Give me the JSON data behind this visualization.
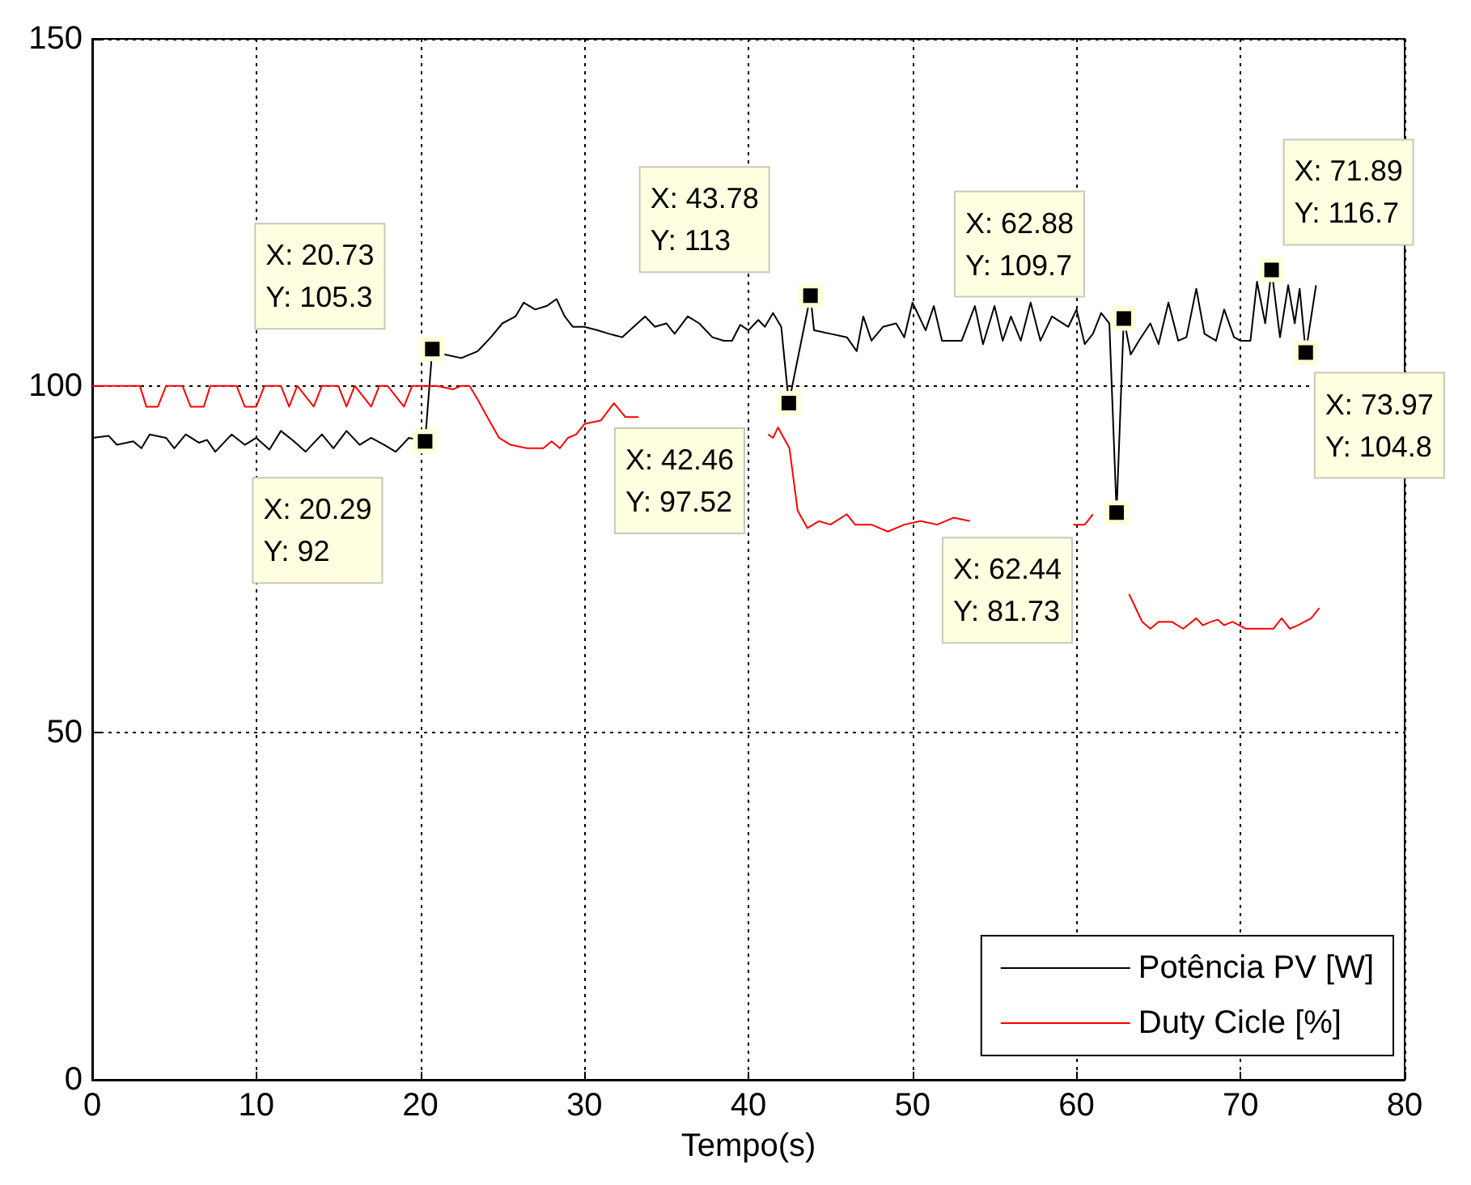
{
  "chart_data": {
    "type": "line",
    "xlabel": "Tempo(s)",
    "xlim": [
      0,
      80
    ],
    "xticks": [
      0,
      10,
      20,
      30,
      40,
      50,
      60,
      70,
      80
    ],
    "ylim": [
      0,
      150
    ],
    "yticks": [
      0,
      50,
      100,
      150
    ],
    "grid": true,
    "legend": "bottom right",
    "marker": "none",
    "line_style": "solid",
    "series": [
      {
        "name": "Potência PV [W]",
        "color": "#000000",
        "x": [
          0,
          1,
          1.5,
          2.5,
          3,
          3.5,
          4.5,
          5,
          5.7,
          6.5,
          7,
          7.5,
          8.5,
          9.3,
          10,
          10.8,
          11.5,
          12.3,
          13,
          14,
          14.7,
          15.5,
          16.3,
          17,
          17.8,
          18.5,
          19.3,
          20.29,
          20.73,
          21.5,
          22.5,
          23.5,
          24.3,
          25,
          25.8,
          26.3,
          27,
          27.7,
          28.3,
          28.8,
          29.3,
          30,
          30.8,
          31.5,
          32.3,
          33,
          33.7,
          34.3,
          35,
          35.5,
          36.3,
          37,
          37.8,
          38.5,
          39,
          39.5,
          40,
          40.6,
          41,
          41.5,
          42,
          42.46,
          43.78,
          44,
          45,
          46,
          46.6,
          47,
          47.5,
          48.2,
          49,
          49.5,
          50,
          50.8,
          51.3,
          51.8,
          52.3,
          53,
          53.8,
          54.3,
          55,
          55.5,
          56,
          56.6,
          57.2,
          57.8,
          58.5,
          59.5,
          60,
          60.5,
          61,
          61.5,
          62,
          62.44,
          62.88,
          63.3,
          63.8,
          64.5,
          65,
          65.6,
          66.2,
          66.7,
          67.3,
          67.8,
          68.5,
          69,
          69.6,
          70,
          70.6,
          71,
          71.5,
          71.89,
          72.4,
          72.9,
          73.3,
          73.6,
          73.97,
          74.6
        ],
        "values": [
          92.5,
          92.8,
          91.5,
          92,
          91,
          93,
          92.5,
          91,
          93,
          91.8,
          92.2,
          90.5,
          93,
          91.5,
          92.5,
          90.8,
          93.5,
          92,
          90.5,
          93,
          91,
          93.5,
          91.5,
          92.5,
          91.5,
          90.5,
          92.5,
          92,
          105.3,
          104.5,
          104,
          105,
          107,
          109,
          110,
          112,
          111,
          111.5,
          112.5,
          110,
          108.5,
          108.5,
          108,
          107.5,
          107,
          108.5,
          110,
          108.5,
          109,
          107.5,
          110,
          109,
          107,
          106.5,
          106.5,
          108.8,
          108,
          109.5,
          108.5,
          110.5,
          108.5,
          97.52,
          113,
          108,
          107.5,
          107,
          105,
          110,
          106.5,
          108.5,
          109,
          107,
          112,
          108,
          111.5,
          106.5,
          106.5,
          106.5,
          111.5,
          106,
          111.5,
          106.5,
          110,
          106.5,
          112,
          106.5,
          110,
          108.5,
          111,
          106,
          107.5,
          110.5,
          109,
          81.73,
          109.7,
          104.5,
          106.5,
          109,
          106,
          112,
          106.5,
          107,
          114,
          107.5,
          106.5,
          111,
          107,
          106.5,
          106.5,
          115,
          109,
          116.7,
          107,
          114.5,
          109,
          114,
          104.8,
          114.5
        ]
      },
      {
        "name": "Duty Cicle [%]",
        "color": "#ff0000",
        "x": [
          0,
          2.9,
          3.3,
          4,
          4.5,
          5.5,
          6,
          6.8,
          7.2,
          8.8,
          9.3,
          10,
          10.5,
          11.5,
          12,
          12.5,
          13.5,
          14,
          15,
          15.5,
          16,
          17,
          17.5,
          18,
          19,
          19.5,
          21,
          22,
          22.5,
          23,
          23.5,
          24.2,
          24.8,
          25.5,
          26.5,
          27.5,
          28,
          28.5,
          29,
          29.5,
          30,
          31,
          31.8,
          32.5,
          33.3,
          37,
          41.2,
          41.5,
          41.8,
          42.5,
          43,
          43.6,
          44.3,
          45,
          46,
          46.5,
          47.5,
          48.5,
          49.5,
          50.5,
          51.5,
          52.5,
          53.5,
          57,
          59.8,
          60.5,
          61,
          62.6,
          63.2,
          63.6,
          64,
          64.5,
          65,
          65.8,
          66.5,
          67.3,
          67.7,
          68.2,
          68.6,
          69,
          69.5,
          70.3,
          72,
          72.5,
          73,
          73.5,
          74.3,
          74.8
        ],
        "values": [
          100,
          100,
          97,
          97,
          100,
          100,
          97,
          97,
          100,
          100,
          97,
          97,
          100,
          100,
          97,
          100,
          97,
          100,
          100,
          97,
          100,
          97,
          100,
          100,
          97,
          100,
          100,
          99.5,
          100,
          100,
          98,
          95,
          92.5,
          91.5,
          91,
          91,
          92,
          91,
          92.5,
          93,
          94.5,
          95,
          97.5,
          95.5,
          95.5,
          null,
          93,
          92.5,
          94,
          91,
          82,
          79.5,
          80.5,
          80,
          81.5,
          80,
          80,
          79,
          80,
          80.5,
          80,
          81,
          80.5,
          null,
          80,
          80,
          81.5,
          null,
          70,
          68,
          66,
          65,
          66,
          66,
          65,
          66.5,
          65.5,
          66,
          66.3,
          65.5,
          66,
          65,
          65,
          66.5,
          65,
          65.5,
          66.5,
          68
        ]
      }
    ],
    "annotations": [
      {
        "text": "X: 20.29\nY: 92",
        "x": 20.29,
        "y": 92
      },
      {
        "text": "X: 20.73\nY: 105.3",
        "x": 20.73,
        "y": 105.3
      },
      {
        "text": "X: 42.46\nY: 97.52",
        "x": 42.46,
        "y": 97.52
      },
      {
        "text": "X: 43.78\nY: 113",
        "x": 43.78,
        "y": 113
      },
      {
        "text": "X: 62.44\nY: 81.73",
        "x": 62.44,
        "y": 81.73
      },
      {
        "text": "X: 62.88\nY: 109.7",
        "x": 62.88,
        "y": 109.7
      },
      {
        "text": "X: 71.89\nY: 116.7",
        "x": 71.89,
        "y": 116.7
      },
      {
        "text": "X: 73.97\nY: 104.8",
        "x": 73.97,
        "y": 104.8
      }
    ]
  }
}
